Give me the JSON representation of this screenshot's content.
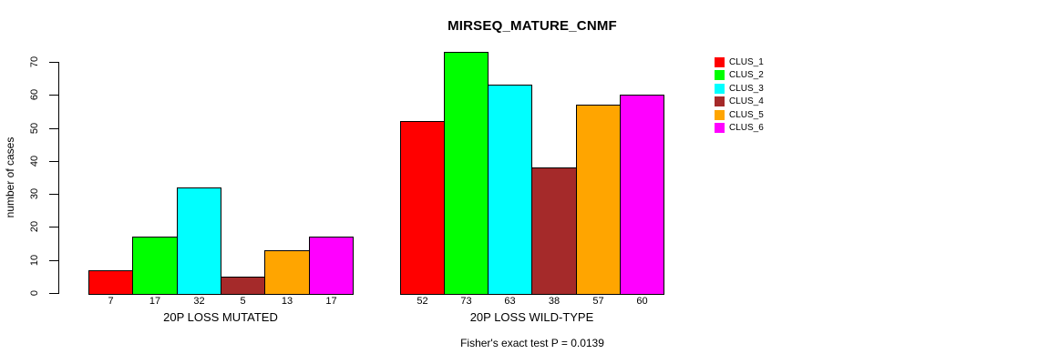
{
  "chart_data": {
    "type": "bar",
    "title": "MIRSEQ_MATURE_CNMF",
    "ylabel": "number of cases",
    "ylim": [
      0,
      70
    ],
    "yticks": [
      0,
      10,
      20,
      30,
      40,
      50,
      60,
      70
    ],
    "grid": false,
    "legend_position": "right",
    "bar_value_labels_shown": true,
    "groups": [
      {
        "label": "20P LOSS MUTATED",
        "values": [
          7,
          17,
          32,
          5,
          13,
          17
        ]
      },
      {
        "label": "20P LOSS WILD-TYPE",
        "values": [
          52,
          73,
          63,
          38,
          57,
          60
        ]
      }
    ],
    "series": [
      {
        "name": "CLUS_1",
        "color": "#FF0000"
      },
      {
        "name": "CLUS_2",
        "color": "#00FF00"
      },
      {
        "name": "CLUS_3",
        "color": "#00FFFF"
      },
      {
        "name": "CLUS_4",
        "color": "#A52A2A"
      },
      {
        "name": "CLUS_5",
        "color": "#FFA500"
      },
      {
        "name": "CLUS_6",
        "color": "#FF00FF"
      }
    ],
    "annotation": "Fisher's exact test P = 0.0139"
  }
}
